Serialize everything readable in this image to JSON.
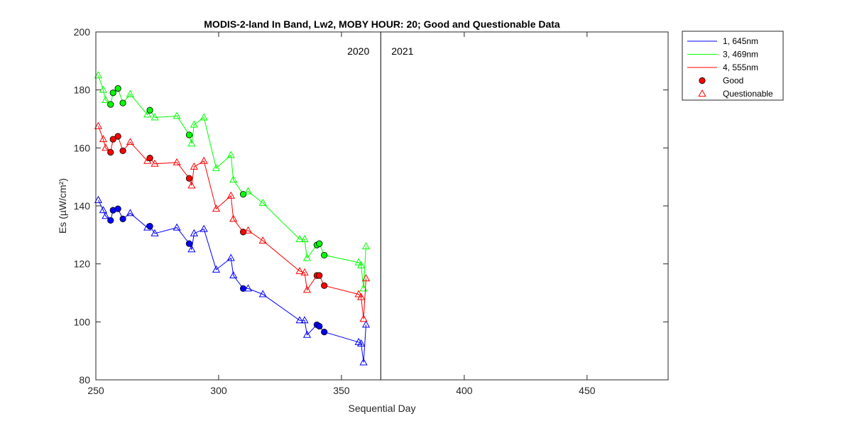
{
  "chart_data": {
    "type": "line",
    "title": "MODIS-2-land In Band,  Lw2, MOBY HOUR: 20;  Good and Questionable Data",
    "xlabel": "Sequential Day",
    "ylabel": "Es (µW/cm²)",
    "xlim": [
      250,
      483
    ],
    "ylim": [
      80,
      200
    ],
    "xticks": [
      250,
      300,
      350,
      400,
      450
    ],
    "yticks": [
      80,
      100,
      120,
      140,
      160,
      180,
      200
    ],
    "grid": false,
    "legend_position": "outside-top-right",
    "year_divider": {
      "x": 366,
      "left_label": "2020",
      "right_label": "2021"
    },
    "series": [
      {
        "name": "1, 645nm",
        "color": "#0000ff",
        "x": [
          251,
          253,
          254,
          256,
          257,
          259,
          261,
          264,
          271,
          272,
          274,
          283,
          288,
          289,
          290,
          294,
          299,
          305,
          306,
          310,
          312,
          318,
          333,
          335,
          336,
          340,
          341,
          343,
          357,
          358,
          359,
          360
        ],
        "y": [
          142,
          138.5,
          136.5,
          135,
          138.5,
          139,
          135.5,
          137.5,
          132.5,
          133,
          130.5,
          132.5,
          127,
          125,
          130.5,
          132,
          118,
          122,
          116,
          111.5,
          111.5,
          109.5,
          100.5,
          100.5,
          95.5,
          99,
          98.5,
          96.5,
          93,
          92.5,
          86,
          99
        ],
        "good": [
          0,
          0,
          0,
          1,
          1,
          1,
          1,
          0,
          0,
          1,
          0,
          0,
          1,
          0,
          0,
          0,
          0,
          0,
          0,
          1,
          0,
          0,
          0,
          0,
          0,
          1,
          1,
          1,
          0,
          0,
          0,
          0
        ]
      },
      {
        "name": "3, 469nm",
        "color": "#00ff00",
        "x": [
          251,
          253,
          254,
          256,
          257,
          259,
          261,
          264,
          271,
          272,
          274,
          283,
          288,
          289,
          290,
          294,
          299,
          305,
          306,
          310,
          312,
          318,
          333,
          335,
          336,
          340,
          341,
          343,
          357,
          358,
          359,
          360
        ],
        "y": [
          185,
          180,
          176.5,
          175,
          179,
          180.5,
          175.5,
          178.5,
          171.5,
          173,
          170.5,
          171,
          164.5,
          161.5,
          168,
          170.5,
          153,
          157.5,
          149,
          144,
          145,
          141,
          128.5,
          128.5,
          122,
          126.5,
          127,
          123,
          120.5,
          119.5,
          111.5,
          126
        ],
        "good": [
          0,
          0,
          0,
          1,
          1,
          1,
          1,
          0,
          0,
          1,
          0,
          0,
          1,
          0,
          0,
          0,
          0,
          0,
          0,
          1,
          0,
          0,
          0,
          0,
          0,
          1,
          1,
          1,
          0,
          0,
          0,
          0
        ]
      },
      {
        "name": "4, 555nm",
        "color": "#ff0000",
        "x": [
          251,
          253,
          254,
          256,
          257,
          259,
          261,
          264,
          271,
          272,
          274,
          283,
          288,
          289,
          290,
          294,
          299,
          305,
          306,
          310,
          312,
          318,
          333,
          335,
          336,
          340,
          341,
          343,
          357,
          358,
          359,
          360
        ],
        "y": [
          167.5,
          163,
          160,
          158.5,
          163,
          164,
          159,
          162,
          155.5,
          156.5,
          154.5,
          155,
          149.5,
          147,
          153.5,
          155.5,
          139,
          143.5,
          135.5,
          131,
          131.5,
          128,
          117.5,
          117,
          111,
          116,
          116,
          112.5,
          109.5,
          108.5,
          101,
          115
        ],
        "good": [
          0,
          0,
          0,
          1,
          1,
          1,
          1,
          0,
          0,
          1,
          0,
          0,
          1,
          0,
          0,
          0,
          0,
          0,
          0,
          1,
          0,
          0,
          0,
          0,
          0,
          1,
          1,
          1,
          0,
          0,
          0,
          0
        ]
      }
    ],
    "legend": [
      {
        "label": "1, 645nm",
        "kind": "line",
        "color": "#0000ff"
      },
      {
        "label": "3, 469nm",
        "kind": "line",
        "color": "#00ff00"
      },
      {
        "label": "4, 555nm",
        "kind": "line",
        "color": "#ff0000"
      },
      {
        "label": "Good",
        "kind": "filled-circle",
        "color": "#ff0000"
      },
      {
        "label": "Questionable",
        "kind": "open-triangle",
        "color": "#ff0000"
      }
    ]
  }
}
